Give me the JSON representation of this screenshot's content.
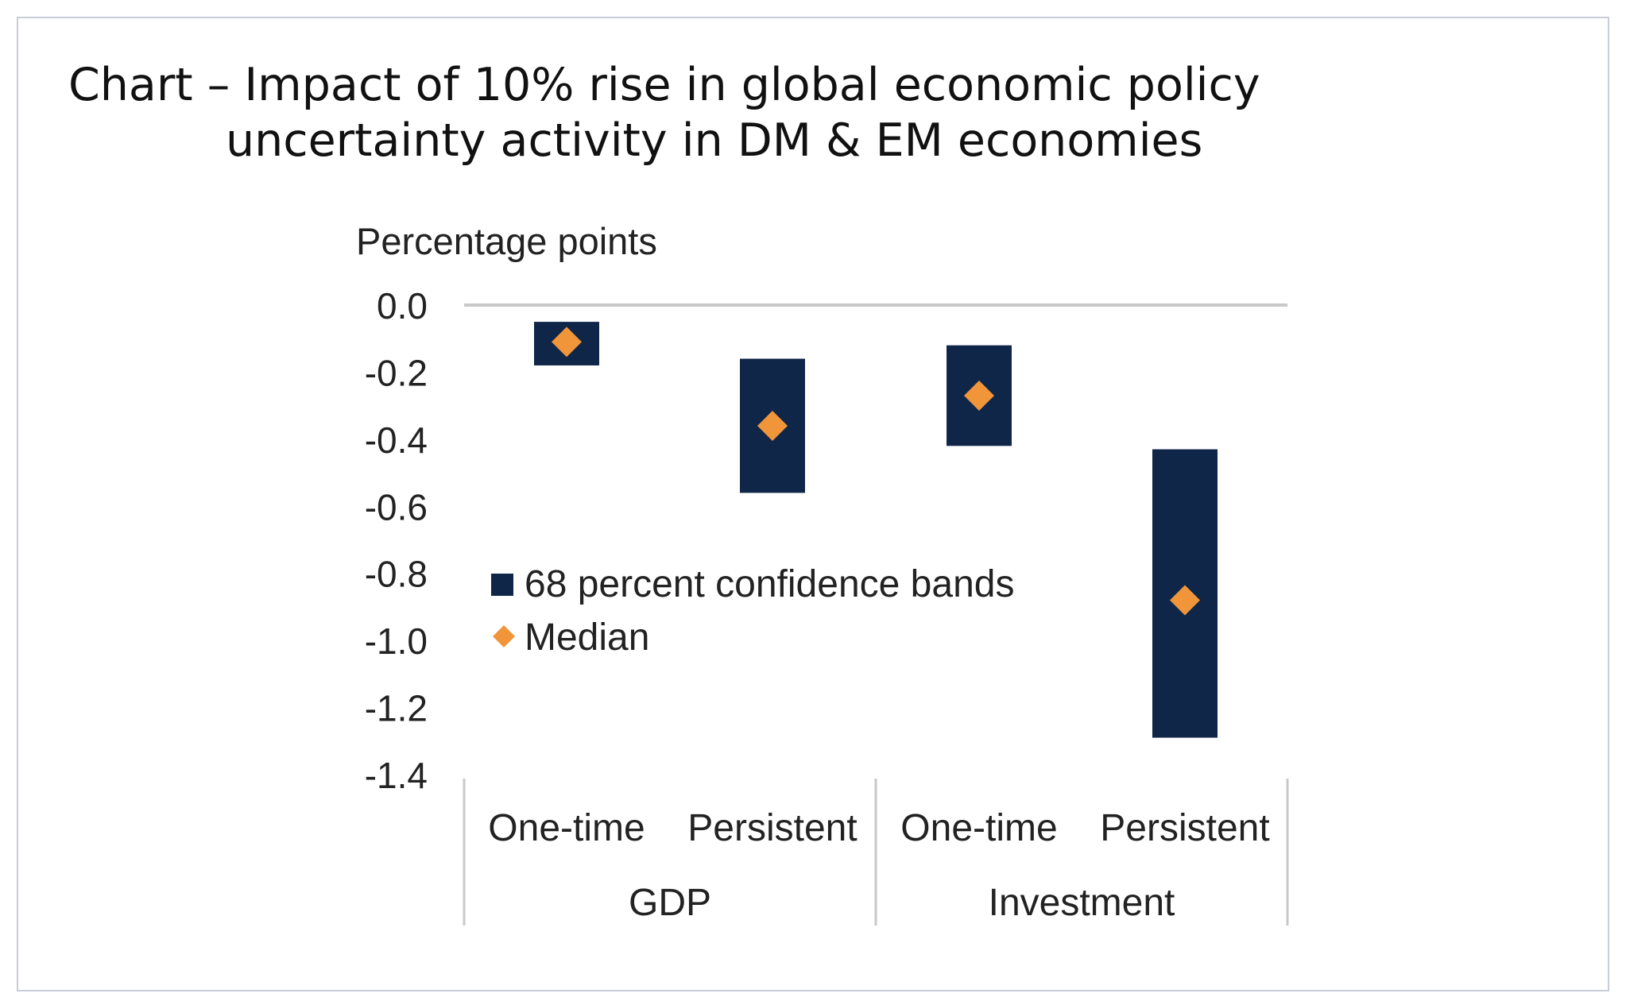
{
  "title_line1": "Chart – Impact of 10% rise in global economic policy",
  "title_line2": "uncertainty activity in DM & EM economies",
  "colors": {
    "band": "#0f2648",
    "median": "#f0953a",
    "axis": "#c8c8c8",
    "text": "#222222"
  },
  "chart_data": {
    "type": "floating-bar",
    "ylabel": "Percentage points",
    "ylim": [
      -1.4,
      0.0
    ],
    "yticks": [
      0.0,
      -0.2,
      -0.4,
      -0.6,
      -0.8,
      -1.0,
      -1.2,
      -1.4
    ],
    "ytick_labels": [
      "0.0",
      "-0.2",
      "-0.4",
      "-0.6",
      "-0.8",
      "-1.0",
      "-1.2",
      "-1.4"
    ],
    "groups": [
      "GDP",
      "Investment"
    ],
    "categories": [
      "One-time",
      "Persistent",
      "One-time",
      "Persistent"
    ],
    "category_group": [
      0,
      0,
      1,
      1
    ],
    "series": [
      {
        "name": "68 percent confidence bands",
        "kind": "range",
        "low": [
          -0.18,
          -0.56,
          -0.42,
          -1.29
        ],
        "high": [
          -0.05,
          -0.16,
          -0.12,
          -0.43
        ]
      },
      {
        "name": "Median",
        "kind": "marker",
        "values": [
          -0.11,
          -0.36,
          -0.27,
          -0.88
        ]
      }
    ],
    "legend": [
      "68 percent confidence bands",
      "Median"
    ],
    "legend_position": "center-left",
    "grid": false
  }
}
